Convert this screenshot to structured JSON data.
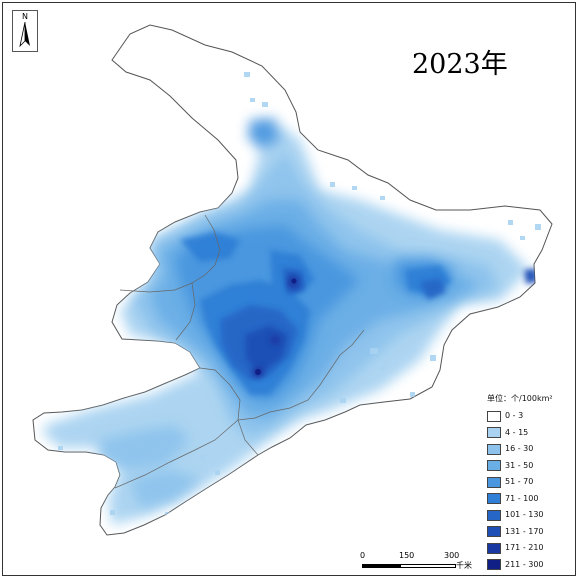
{
  "title": "2023年",
  "north_arrow": {
    "label": "N",
    "icon": "north-arrow-icon"
  },
  "legend": {
    "title": "单位：个/100km²",
    "items": [
      {
        "label": "0 - 3",
        "color": "#ffffff"
      },
      {
        "label": "4 - 15",
        "color": "#a9d3f1"
      },
      {
        "label": "16 - 30",
        "color": "#8cc2ec"
      },
      {
        "label": "31 - 50",
        "color": "#6aaee6"
      },
      {
        "label": "51 - 70",
        "color": "#4a96df"
      },
      {
        "label": "71 - 100",
        "color": "#2f7fd6"
      },
      {
        "label": "101 - 130",
        "color": "#2566c6"
      },
      {
        "label": "131 - 170",
        "color": "#1e4fb6"
      },
      {
        "label": "171 - 210",
        "color": "#1a38a2"
      },
      {
        "label": "211 - 300",
        "color": "#0f1f85"
      }
    ]
  },
  "scale_bar": {
    "ticks": [
      "0",
      "150",
      "300"
    ],
    "unit": "千米"
  }
}
